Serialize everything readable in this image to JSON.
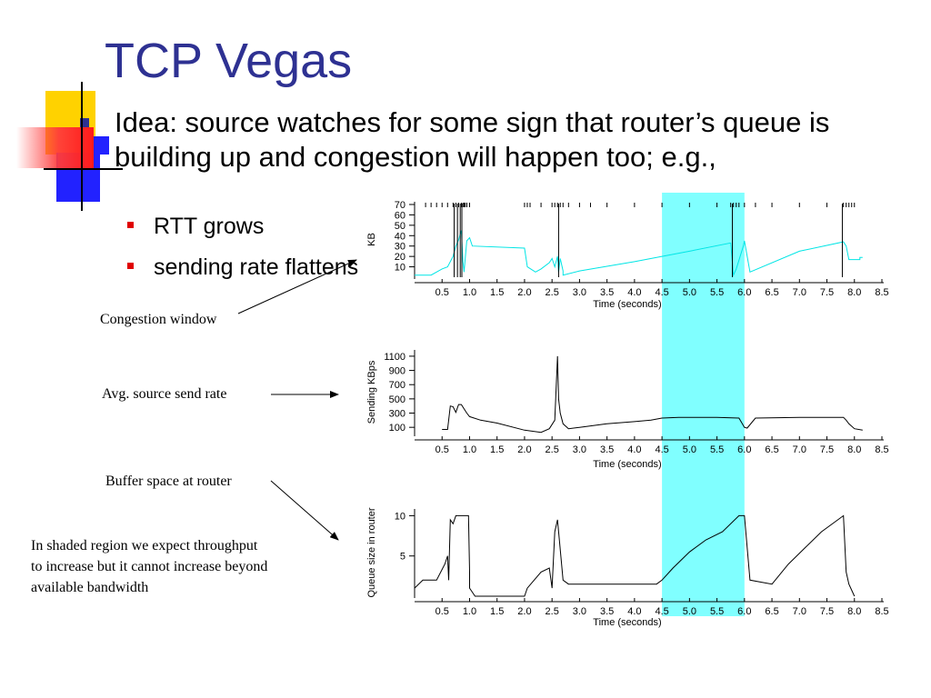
{
  "slide": {
    "title": "TCP Vegas",
    "main_bullet": "Idea: source watches for some sign that router’s queue is building up and congestion will happen too; e.g.,",
    "sub_bullets": [
      "RTT grows",
      "sending rate flattens"
    ],
    "annotations": {
      "congestion_window": "Congestion window",
      "avg_send_rate": "Avg. source send rate",
      "buffer_space": "Buffer space at router",
      "shaded_note_lines": [
        "In shaded region we expect throughput",
        "to increase but it cannot increase beyond",
        "available bandwidth"
      ]
    },
    "colors": {
      "title": "#2e3192",
      "bullet": "#e00000",
      "shade": "#80ffff",
      "cwnd_line": "#00e5e5"
    }
  },
  "chart_data": [
    {
      "type": "line",
      "ylabel": "KB",
      "xlabel": "Time (seconds)",
      "x_ticks": [
        "0.5",
        "1.0",
        "1.5",
        "2.0",
        "2.5",
        "3.0",
        "3.5",
        "4.0",
        "4.5",
        "5.0",
        "5.5",
        "6.0",
        "6.5",
        "7.0",
        "7.5",
        "8.0",
        "8.5"
      ],
      "y_ticks": [
        "70",
        "60",
        "50",
        "40",
        "30",
        "20",
        "10"
      ],
      "xlim": [
        0,
        8.5
      ],
      "ylim": [
        0,
        70
      ],
      "shaded_region": [
        4.5,
        6.0
      ],
      "series": [
        {
          "x": [
            0.0,
            0.3,
            0.5,
            0.6,
            0.7,
            0.75,
            0.8,
            0.85,
            0.88,
            0.9,
            0.95,
            1.0,
            1.05,
            2.0,
            2.05,
            2.2,
            2.3,
            2.45,
            2.5,
            2.55,
            2.6,
            2.62,
            2.65,
            2.7,
            2.7,
            3.0,
            4.0,
            5.0,
            5.75,
            5.8,
            5.85,
            5.98,
            6.0,
            6.1,
            7.0,
            7.8,
            7.85,
            7.9,
            8.1,
            8.1,
            8.15
          ],
          "y": [
            2,
            2,
            8,
            10,
            20,
            30,
            36,
            45,
            15,
            5,
            35,
            38,
            30,
            28,
            10,
            5,
            8,
            14,
            18,
            10,
            20,
            5,
            18,
            6,
            2,
            6,
            15,
            25,
            33,
            2,
            8,
            30,
            35,
            5,
            25,
            34,
            30,
            17,
            17,
            19,
            19
          ]
        },
        {
          "x": [
            0.2,
            0.3,
            0.4,
            0.5,
            0.6,
            0.7,
            0.75,
            0.8,
            0.85,
            0.88,
            0.9,
            0.92,
            0.95,
            1.0,
            2.0,
            2.05,
            2.1,
            2.3,
            2.5,
            2.55,
            2.6,
            2.65,
            2.7,
            2.8,
            3.0,
            3.2,
            3.5,
            4.0,
            4.5,
            5.0,
            5.5,
            5.75,
            5.8,
            5.85,
            5.9,
            6.0,
            6.2,
            6.5,
            7.0,
            7.5,
            7.8,
            7.85,
            7.9,
            7.95,
            8.0
          ],
          "y": [
            70,
            70,
            70,
            70,
            70,
            70,
            70,
            70,
            70,
            70,
            70,
            70,
            70,
            70,
            70,
            70,
            70,
            70,
            70,
            70,
            70,
            70,
            70,
            70,
            70,
            70,
            70,
            70,
            70,
            70,
            70,
            70,
            70,
            70,
            70,
            70,
            70,
            70,
            70,
            70,
            70,
            70,
            70,
            70,
            70
          ]
        }
      ]
    },
    {
      "type": "line",
      "ylabel": "Sending KBps",
      "xlabel": "Time (seconds)",
      "x_ticks": [
        "0.5",
        "1.0",
        "1.5",
        "2.0",
        "2.5",
        "3.0",
        "3.5",
        "4.0",
        "4.5",
        "5.0",
        "5.5",
        "6.0",
        "6.5",
        "7.0",
        "7.5",
        "8.0",
        "8.5"
      ],
      "y_ticks": [
        "1100",
        "900",
        "700",
        "500",
        "300",
        "100"
      ],
      "xlim": [
        0,
        8.5
      ],
      "ylim": [
        0,
        1150
      ],
      "shaded_region": [
        4.5,
        6.0
      ],
      "series": [
        {
          "x": [
            0.5,
            0.6,
            0.65,
            0.7,
            0.75,
            0.8,
            0.85,
            0.95,
            1.0,
            1.2,
            1.5,
            2.0,
            2.3,
            2.45,
            2.55,
            2.6,
            2.62,
            2.65,
            2.7,
            2.8,
            3.0,
            3.5,
            4.0,
            4.3,
            4.5,
            4.8,
            5.0,
            5.5,
            5.9,
            6.0,
            6.05,
            6.2,
            7.0,
            7.8,
            7.85,
            7.9,
            8.0,
            8.15
          ],
          "y": [
            70,
            70,
            400,
            390,
            310,
            420,
            420,
            300,
            250,
            200,
            160,
            60,
            30,
            80,
            200,
            1100,
            500,
            300,
            150,
            80,
            100,
            150,
            180,
            200,
            230,
            240,
            240,
            240,
            230,
            100,
            90,
            230,
            240,
            240,
            200,
            150,
            80,
            60
          ]
        }
      ]
    },
    {
      "type": "line",
      "ylabel": "Queue size in router",
      "xlabel": "Time (seconds)",
      "x_ticks": [
        "0.5",
        "1.0",
        "1.5",
        "2.0",
        "2.5",
        "3.0",
        "3.5",
        "4.0",
        "4.5",
        "5.0",
        "5.5",
        "6.0",
        "6.5",
        "7.0",
        "7.5",
        "8.0",
        "8.5"
      ],
      "y_ticks": [
        "10",
        "5"
      ],
      "xlim": [
        0,
        8.5
      ],
      "ylim": [
        0,
        10.5
      ],
      "shaded_region": [
        4.5,
        6.0
      ],
      "series": [
        {
          "x": [
            0.0,
            0.15,
            0.4,
            0.55,
            0.6,
            0.62,
            0.65,
            0.7,
            0.75,
            0.8,
            0.9,
            0.95,
            0.98,
            1.0,
            1.0,
            1.1,
            2.0,
            2.05,
            2.3,
            2.45,
            2.5,
            2.55,
            2.6,
            2.7,
            2.8,
            2.8,
            4.4,
            4.5,
            4.7,
            5.0,
            5.3,
            5.6,
            5.9,
            5.95,
            6.0,
            6.1,
            6.5,
            6.8,
            7.1,
            7.4,
            7.7,
            7.8,
            7.85,
            7.9,
            8.0
          ],
          "y": [
            1,
            2,
            2,
            4,
            5,
            2,
            9.5,
            9,
            10,
            10,
            10,
            10,
            10,
            3,
            1,
            0,
            0,
            1,
            3,
            3.5,
            1,
            8,
            9.5,
            2,
            1.5,
            1.5,
            1.5,
            2,
            3.5,
            5.5,
            7,
            8,
            10,
            10,
            10,
            2,
            1.5,
            4,
            6,
            8,
            9.5,
            10,
            3,
            1.5,
            0
          ]
        }
      ]
    }
  ]
}
